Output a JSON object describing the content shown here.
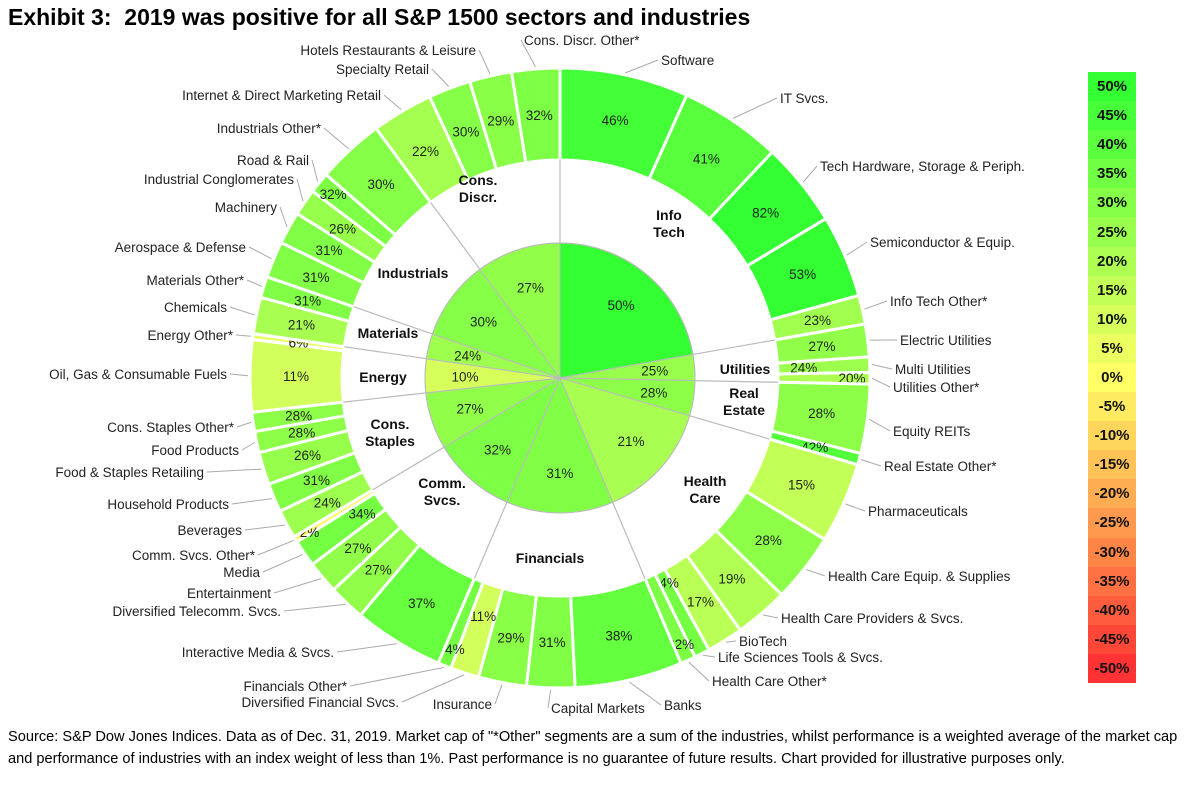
{
  "title": "Exhibit 3:  2019 was positive for all S&P 1500 sectors and industries",
  "footer": "Source:  S&P Dow Jones Indices.  Data as of Dec. 31, 2019. Market cap of \"*Other\" segments are a sum of the industries, whilst performance is a weighted average of the market cap and performance of industries with an index weight of less than 1%. Past performance is no guarantee of future results. Chart provided for illustrative purposes only.",
  "legend": {
    "labels": [
      "50%",
      "45%",
      "40%",
      "35%",
      "30%",
      "25%",
      "20%",
      "15%",
      "10%",
      "5%",
      "0%",
      "-5%",
      "-10%",
      "-15%",
      "-20%",
      "-25%",
      "-30%",
      "-35%",
      "-40%",
      "-45%",
      "-50%"
    ],
    "colors": {
      "max": "#33ff33",
      "zero": "#ffff66",
      "min": "#ff3333"
    }
  },
  "chart_data": {
    "type": "pie",
    "subtype": "sunburst",
    "value_meaning": "2019 total return (%) by color and label; segment size = market cap share (approx. % of total)",
    "sectors": [
      {
        "name": "Info Tech",
        "return": 50,
        "industries": [
          {
            "name": "Software",
            "return": 46,
            "share": 6.7
          },
          {
            "name": "IT Svcs.",
            "return": 41,
            "share": 5.3
          },
          {
            "name": "Tech Hardware, Storage & Periph.",
            "return": 82,
            "share": 4.4
          },
          {
            "name": "Semiconductor & Equip.",
            "return": 53,
            "share": 4.3
          },
          {
            "name": "Info Tech Other*",
            "return": 23,
            "share": 1.5
          }
        ]
      },
      {
        "name": "Utilities",
        "return": 25,
        "industries": [
          {
            "name": "Electric Utilities",
            "return": 27,
            "share": 1.7
          },
          {
            "name": "Multi Utilities",
            "return": 24,
            "share": 0.8
          },
          {
            "name": "Utilities Other*",
            "return": 20,
            "share": 0.6
          }
        ]
      },
      {
        "name": "Real Estate",
        "return": 28,
        "industries": [
          {
            "name": "Equity REITs",
            "return": 28,
            "share": 3.6
          },
          {
            "name": "Real Estate Other*",
            "return": 42,
            "share": 0.6
          }
        ]
      },
      {
        "name": "Health Care",
        "return": 21,
        "industries": [
          {
            "name": "Pharmaceuticals",
            "return": 15,
            "share": 4.2
          },
          {
            "name": "Health Care Equip. & Supplies",
            "return": 28,
            "share": 3.6
          },
          {
            "name": "Health Care Providers & Svcs.",
            "return": 19,
            "share": 2.8
          },
          {
            "name": "BioTech",
            "return": 17,
            "share": 1.9
          },
          {
            "name": "Life Sciences Tools & Svcs.",
            "return": 34,
            "share": 0.8
          },
          {
            "name": "Health Care Other*",
            "return": 32,
            "share": 0.8
          }
        ]
      },
      {
        "name": "Financials",
        "return": 31,
        "industries": [
          {
            "name": "Banks",
            "return": 38,
            "share": 5.6
          },
          {
            "name": "Capital Markets",
            "return": 31,
            "share": 2.5
          },
          {
            "name": "Insurance",
            "return": 29,
            "share": 2.5
          },
          {
            "name": "Diversified Financial Svcs.",
            "return": 11,
            "share": 1.5
          },
          {
            "name": "Financials Other*",
            "return": 34,
            "share": 0.7
          }
        ]
      },
      {
        "name": "Comm. Svcs.",
        "return": 32,
        "industries": [
          {
            "name": "Interactive Media & Svcs.",
            "return": 37,
            "share": 4.7
          },
          {
            "name": "Diversified Telecomm. Svcs.",
            "return": 27,
            "share": 1.9
          },
          {
            "name": "Entertainment",
            "return": 27,
            "share": 1.7
          },
          {
            "name": "Media",
            "return": 34,
            "share": 1.4
          },
          {
            "name": "Comm. Svcs. Other*",
            "return": -2,
            "share": 0.3
          }
        ]
      },
      {
        "name": "Cons. Staples",
        "return": 27,
        "industries": [
          {
            "name": "Beverages",
            "return": 24,
            "share": 1.5
          },
          {
            "name": "Household Products",
            "return": 31,
            "share": 1.5
          },
          {
            "name": "Food & Staples Retailing",
            "return": 26,
            "share": 1.7
          },
          {
            "name": "Food Products",
            "return": 28,
            "share": 1.1
          },
          {
            "name": "Cons. Staples Other*",
            "return": 28,
            "share": 1.0
          }
        ]
      },
      {
        "name": "Energy",
        "return": 10,
        "industries": [
          {
            "name": "Oil, Gas & Consumable Fuels",
            "return": 11,
            "share": 3.75
          },
          {
            "name": "Energy Other*",
            "return": 6,
            "share": 0.3
          }
        ]
      },
      {
        "name": "Materials",
        "return": 24,
        "industries": [
          {
            "name": "Chemicals",
            "return": 21,
            "share": 1.9
          },
          {
            "name": "Materials Other*",
            "return": 31,
            "share": 1.1
          }
        ]
      },
      {
        "name": "Industrials",
        "return": 30,
        "industries": [
          {
            "name": "Aerospace & Defense",
            "return": 31,
            "share": 1.9
          },
          {
            "name": "Machinery",
            "return": 31,
            "share": 1.7
          },
          {
            "name": "Industrial Conglomerates",
            "return": 26,
            "share": 1.4
          },
          {
            "name": "Road & Rail",
            "return": 32,
            "share": 1.1
          },
          {
            "name": "Industrials Other*",
            "return": 30,
            "share": 3.5
          }
        ]
      },
      {
        "name": "Cons. Discr.",
        "return": 27,
        "industries": [
          {
            "name": "Internet & Direct Marketing Retail",
            "return": 22,
            "share": 3.2
          },
          {
            "name": "Specialty Retail",
            "return": 30,
            "share": 2.2
          },
          {
            "name": "Hotels Restaurants & Leisure",
            "return": 29,
            "share": 2.2
          },
          {
            "name": "Cons. Discr. Other*",
            "return": 32,
            "share": 2.5
          }
        ]
      }
    ]
  }
}
